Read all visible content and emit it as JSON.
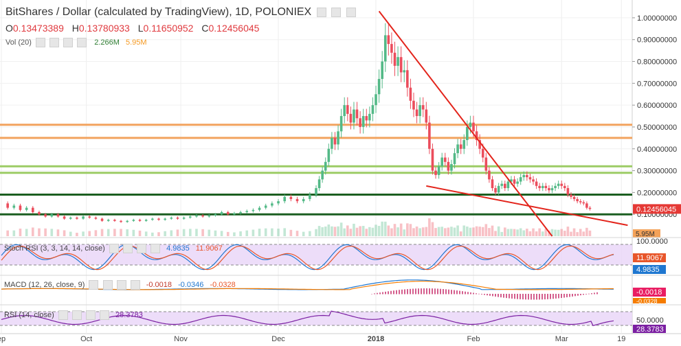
{
  "header": {
    "title": "BitShares / Dollar (calculated by TradingView), 1D, POLONIEX",
    "ohlc": [
      {
        "k": "O",
        "v": "0.13473389"
      },
      {
        "k": "H",
        "v": "0.13780933"
      },
      {
        "k": "L",
        "v": "0.11650952"
      },
      {
        "k": "C",
        "v": "0.12456045"
      }
    ],
    "vol_label": "Vol (20)",
    "vol_value": "2.266M",
    "vol_ma": "5.95M"
  },
  "colors": {
    "up": "#53b987",
    "down": "#eb4d5c",
    "trendline": "#e3241b",
    "orange_level": "#f2a35e",
    "green_level": "#9ccc65",
    "dark_level": "#1b5e20",
    "rsi_band": "#e9d5f7",
    "stoch_k": "#1f77d0",
    "stoch_d": "#e8562a",
    "macd_line": "#1f77d0",
    "signal_line": "#f57c00",
    "rsi_line": "#7b1fa2",
    "current_price_bg": "#e53935"
  },
  "chart_data": {
    "type": "candlestick",
    "title": "BitShares / Dollar (calculated by TradingView), 1D, POLONIEX",
    "y_axis_ticks": [
      "1.00000000",
      "0.90000000",
      "0.80000000",
      "0.70000000",
      "0.60000000",
      "0.50000000",
      "0.40000000",
      "0.30000000",
      "0.20000000",
      "0.10000000"
    ],
    "y_axis_values": [
      1.0,
      0.9,
      0.8,
      0.7,
      0.6,
      0.5,
      0.4,
      0.3,
      0.2,
      0.1
    ],
    "ylim": [
      0.0,
      1.05
    ],
    "x_axis_ticks": [
      "ep",
      "Oct",
      "Nov",
      "Dec",
      "2018",
      "Feb",
      "Mar",
      "19"
    ],
    "x_axis_days": [
      0,
      27,
      57,
      88,
      119,
      150,
      178,
      197
    ],
    "last_price_label": "0.12456045",
    "volume_label": "5.95M",
    "horizontal_levels": [
      {
        "price": 0.51,
        "kind": "orange"
      },
      {
        "price": 0.45,
        "kind": "orange"
      },
      {
        "price": 0.32,
        "kind": "green"
      },
      {
        "price": 0.29,
        "kind": "green"
      },
      {
        "price": 0.19,
        "kind": "dark"
      },
      {
        "price": 0.1,
        "kind": "dark"
      }
    ],
    "trendlines": [
      {
        "from": [
          120,
          1.03
        ],
        "to": [
          175,
          0.0
        ]
      },
      {
        "from": [
          135,
          0.23
        ],
        "to": [
          199,
          0.05
        ]
      }
    ],
    "close_path": [
      [
        0,
        0.15
      ],
      [
        2,
        0.13
      ],
      [
        4,
        0.14
      ],
      [
        6,
        0.12
      ],
      [
        8,
        0.13
      ],
      [
        10,
        0.11
      ],
      [
        12,
        0.1
      ],
      [
        14,
        0.09
      ],
      [
        16,
        0.1
      ],
      [
        18,
        0.09
      ],
      [
        20,
        0.08
      ],
      [
        22,
        0.085
      ],
      [
        24,
        0.08
      ],
      [
        26,
        0.09
      ],
      [
        28,
        0.085
      ],
      [
        30,
        0.08
      ],
      [
        32,
        0.07
      ],
      [
        34,
        0.075
      ],
      [
        36,
        0.07
      ],
      [
        38,
        0.065
      ],
      [
        40,
        0.07
      ],
      [
        42,
        0.075
      ],
      [
        44,
        0.07
      ],
      [
        46,
        0.075
      ],
      [
        48,
        0.08
      ],
      [
        50,
        0.075
      ],
      [
        52,
        0.08
      ],
      [
        54,
        0.085
      ],
      [
        56,
        0.08
      ],
      [
        58,
        0.085
      ],
      [
        60,
        0.09
      ],
      [
        62,
        0.095
      ],
      [
        64,
        0.09
      ],
      [
        66,
        0.095
      ],
      [
        68,
        0.1
      ],
      [
        70,
        0.11
      ],
      [
        72,
        0.1
      ],
      [
        74,
        0.105
      ],
      [
        76,
        0.11
      ],
      [
        78,
        0.115
      ],
      [
        80,
        0.12
      ],
      [
        82,
        0.13
      ],
      [
        84,
        0.14
      ],
      [
        86,
        0.15
      ],
      [
        88,
        0.16
      ],
      [
        90,
        0.18
      ],
      [
        92,
        0.17
      ],
      [
        94,
        0.16
      ],
      [
        96,
        0.17
      ],
      [
        98,
        0.19
      ],
      [
        100,
        0.22
      ],
      [
        101,
        0.26
      ],
      [
        102,
        0.3
      ],
      [
        103,
        0.34
      ],
      [
        104,
        0.4
      ],
      [
        105,
        0.45
      ],
      [
        106,
        0.42
      ],
      [
        107,
        0.48
      ],
      [
        108,
        0.55
      ],
      [
        109,
        0.6
      ],
      [
        110,
        0.56
      ],
      [
        111,
        0.52
      ],
      [
        112,
        0.58
      ],
      [
        113,
        0.54
      ],
      [
        114,
        0.5
      ],
      [
        115,
        0.55
      ],
      [
        116,
        0.53
      ],
      [
        117,
        0.56
      ],
      [
        118,
        0.6
      ],
      [
        119,
        0.65
      ],
      [
        120,
        0.72
      ],
      [
        121,
        0.8
      ],
      [
        122,
        0.92
      ],
      [
        123,
        0.88
      ],
      [
        124,
        0.84
      ],
      [
        125,
        0.78
      ],
      [
        126,
        0.82
      ],
      [
        127,
        0.75
      ],
      [
        128,
        0.76
      ],
      [
        129,
        0.68
      ],
      [
        130,
        0.62
      ],
      [
        131,
        0.58
      ],
      [
        132,
        0.55
      ],
      [
        133,
        0.6
      ],
      [
        134,
        0.58
      ],
      [
        135,
        0.52
      ],
      [
        136,
        0.4
      ],
      [
        137,
        0.3
      ],
      [
        138,
        0.28
      ],
      [
        139,
        0.32
      ],
      [
        140,
        0.36
      ],
      [
        141,
        0.34
      ],
      [
        142,
        0.3
      ],
      [
        143,
        0.33
      ],
      [
        144,
        0.38
      ],
      [
        145,
        0.42
      ],
      [
        146,
        0.4
      ],
      [
        147,
        0.44
      ],
      [
        148,
        0.5
      ],
      [
        149,
        0.52
      ],
      [
        150,
        0.48
      ],
      [
        151,
        0.44
      ],
      [
        152,
        0.4
      ],
      [
        153,
        0.36
      ],
      [
        154,
        0.3
      ],
      [
        155,
        0.26
      ],
      [
        156,
        0.22
      ],
      [
        157,
        0.2
      ],
      [
        158,
        0.23
      ],
      [
        159,
        0.24
      ],
      [
        160,
        0.22
      ],
      [
        161,
        0.25
      ],
      [
        162,
        0.26
      ],
      [
        163,
        0.24
      ],
      [
        164,
        0.25
      ],
      [
        165,
        0.27
      ],
      [
        166,
        0.28
      ],
      [
        167,
        0.27
      ],
      [
        168,
        0.26
      ],
      [
        169,
        0.25
      ],
      [
        170,
        0.23
      ],
      [
        171,
        0.22
      ],
      [
        172,
        0.23
      ],
      [
        173,
        0.22
      ],
      [
        174,
        0.21
      ],
      [
        175,
        0.22
      ],
      [
        176,
        0.23
      ],
      [
        177,
        0.24
      ],
      [
        178,
        0.23
      ],
      [
        179,
        0.22
      ],
      [
        180,
        0.19
      ],
      [
        181,
        0.18
      ],
      [
        182,
        0.17
      ],
      [
        183,
        0.16
      ],
      [
        184,
        0.155
      ],
      [
        185,
        0.15
      ],
      [
        186,
        0.13
      ],
      [
        187,
        0.12456
      ]
    ],
    "volume_scale_label": "5.95M",
    "indicators": [
      {
        "name": "Stoch RSI (3, 3, 14, 14, close)",
        "values": [
          "4.9835",
          "11.9067"
        ],
        "axis_ticks": [
          "100.0000"
        ],
        "last_labels": [
          "11.9067",
          "4.9835"
        ],
        "band": [
          20,
          80
        ]
      },
      {
        "name": "MACD (12, 26, close, 9)",
        "values": [
          "-0.0018",
          "-0.0346",
          "-0.0328"
        ],
        "last_labels": [
          "-0.0018",
          "-0.0328"
        ]
      },
      {
        "name": "RSI (14, close)",
        "values": [
          "28.3783"
        ],
        "axis_ticks": [
          "50.0000"
        ],
        "last_labels": [
          "28.3783"
        ],
        "band": [
          30,
          70
        ]
      }
    ]
  }
}
